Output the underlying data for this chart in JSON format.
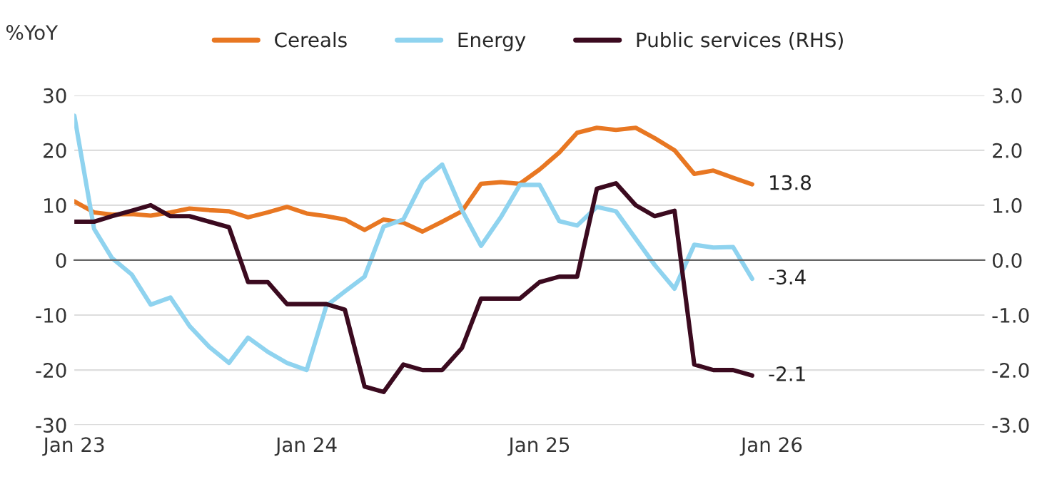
{
  "chart_data": {
    "type": "line",
    "ylabel": "%YoY",
    "x": [
      "2023-01",
      "2023-02",
      "2023-03",
      "2023-04",
      "2023-05",
      "2023-06",
      "2023-07",
      "2023-08",
      "2023-09",
      "2023-10",
      "2023-11",
      "2023-12",
      "2024-01",
      "2024-02",
      "2024-03",
      "2024-04",
      "2024-05",
      "2024-06",
      "2024-07",
      "2024-08",
      "2024-09",
      "2024-10",
      "2024-11",
      "2024-12",
      "2025-01",
      "2025-02",
      "2025-03",
      "2025-04",
      "2025-05",
      "2025-06",
      "2025-07",
      "2025-08",
      "2025-09",
      "2025-10",
      "2025-11",
      "2025-12"
    ],
    "series": [
      {
        "name": "Cereals",
        "color": "#e87722",
        "values": [
          10.7,
          8.7,
          8.3,
          8.4,
          8.1,
          8.7,
          9.4,
          9.1,
          8.9,
          7.8,
          8.7,
          9.7,
          8.5,
          8.0,
          7.4,
          5.5,
          7.4,
          6.8,
          5.2,
          7.0,
          8.9,
          13.9,
          14.2,
          13.9,
          16.5,
          19.6,
          23.2,
          24.1,
          23.7,
          24.1,
          22.2,
          20.0,
          15.7,
          16.3,
          15.0,
          13.8
        ]
      },
      {
        "name": "Energy",
        "color": "#8fd3ef",
        "values": [
          26.3,
          5.7,
          0.4,
          -2.6,
          -8.1,
          -6.8,
          -12.0,
          -15.8,
          -18.7,
          -14.1,
          -16.7,
          -18.7,
          -20.0,
          -8.3,
          -5.7,
          -3.0,
          6.1,
          7.4,
          14.3,
          17.4,
          9.1,
          2.6,
          7.8,
          13.7,
          13.7,
          7.1,
          6.3,
          9.7,
          8.9,
          3.9,
          -0.9,
          -5.2,
          2.8,
          2.3,
          2.4,
          -3.4
        ]
      },
      {
        "name": "Public services (RHS)",
        "color": "#3b0a1f",
        "axis": "y2",
        "values": [
          0.7,
          0.7,
          0.8,
          0.9,
          1.0,
          0.8,
          0.8,
          0.7,
          0.6,
          -0.4,
          -0.4,
          -0.8,
          -0.8,
          -0.8,
          -0.9,
          -2.3,
          -2.4,
          -1.9,
          -2.0,
          -2.0,
          -1.6,
          -0.7,
          -0.7,
          -0.7,
          -0.4,
          -0.3,
          -0.3,
          1.3,
          1.4,
          1.0,
          0.8,
          0.9,
          -1.9,
          -2.0,
          -2.0,
          -2.1
        ]
      }
    ],
    "xlim": [
      "2023-01",
      "2026-12"
    ],
    "xticks": [
      {
        "value": "2023-01",
        "label": "Jan 23"
      },
      {
        "value": "2024-01",
        "label": "Jan 24"
      },
      {
        "value": "2025-01",
        "label": "Jan 25"
      },
      {
        "value": "2026-01",
        "label": "Jan 26"
      }
    ],
    "ylim": [
      -30,
      30
    ],
    "yticks": [
      -30,
      -20,
      -10,
      0,
      10,
      20,
      30
    ],
    "y2lim": [
      -3,
      3
    ],
    "y2ticks": [
      {
        "value": -3,
        "label": "-3.0"
      },
      {
        "value": -2,
        "label": "-2.0"
      },
      {
        "value": -1,
        "label": "-1.0"
      },
      {
        "value": 0,
        "label": "0.0"
      },
      {
        "value": 1,
        "label": "1.0"
      },
      {
        "value": 2,
        "label": "2.0"
      },
      {
        "value": 3,
        "label": "3.0"
      }
    ],
    "annotations": [
      {
        "text": "13.8",
        "x": "2025-12",
        "y": 13.8
      },
      {
        "text": "-3.4",
        "x": "2025-12",
        "y": -3.4
      },
      {
        "text": "-2.1",
        "x": "2025-12",
        "y": -21
      }
    ],
    "grid": "y",
    "legend": "top",
    "line_style": "solid",
    "marker": "none"
  }
}
